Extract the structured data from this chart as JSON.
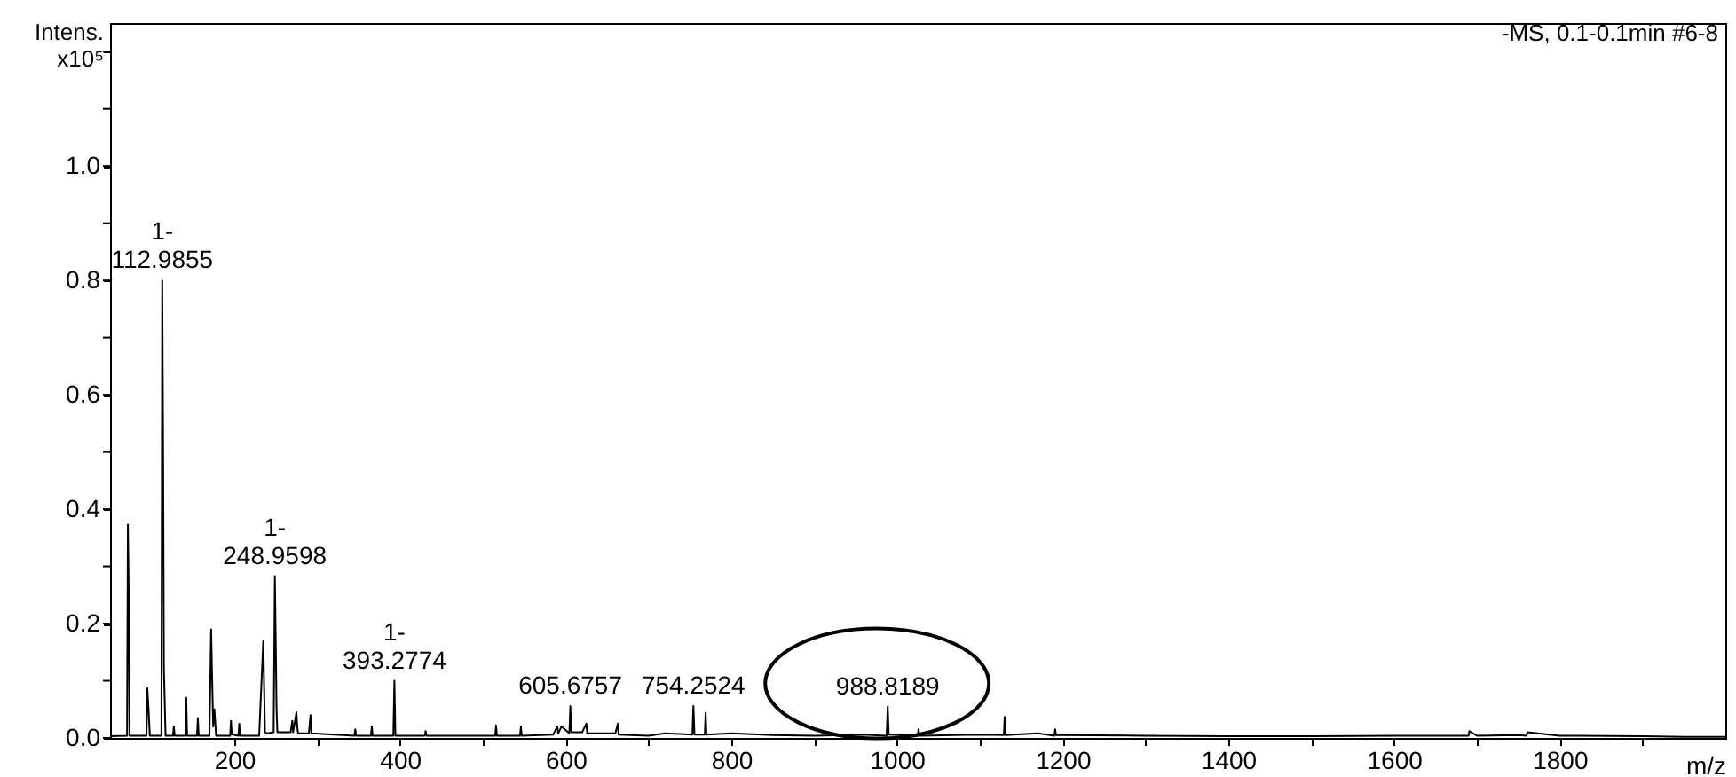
{
  "chart_data": {
    "type": "line",
    "ylabel": "Intens.\nx10⁵",
    "xlabel": "m/z",
    "xlim": [
      50,
      2000
    ],
    "ylim": [
      0,
      1.25
    ],
    "xticks": [
      200,
      {
        "value": 300,
        "label": null
      },
      400,
      {
        "value": 500,
        "label": null
      },
      600,
      {
        "value": 700,
        "label": null
      },
      800,
      {
        "value": 900,
        "label": null
      },
      1000,
      {
        "value": 1100,
        "label": null
      },
      1200,
      {
        "value": 1300,
        "label": null
      },
      1400,
      {
        "value": 1500,
        "label": null
      },
      1600,
      {
        "value": 1700,
        "label": null
      },
      1800,
      {
        "value": 1900,
        "label": null
      }
    ],
    "yticks": [
      {
        "value": 0,
        "label": "0.0"
      },
      {
        "value": 0.1,
        "label": null
      },
      {
        "value": 0.2,
        "label": "0.2"
      },
      {
        "value": 0.3,
        "label": null
      },
      {
        "value": 0.4,
        "label": "0.4"
      },
      {
        "value": 0.5,
        "label": null
      },
      {
        "value": 0.6,
        "label": "0.6"
      },
      {
        "value": 0.7,
        "label": null
      },
      {
        "value": 0.8,
        "label": "0.8"
      },
      {
        "value": 0.9,
        "label": null
      },
      {
        "value": 1.0,
        "label": "1.0"
      },
      {
        "value": 1.1,
        "label": null
      },
      {
        "value": 1.2,
        "label": null
      }
    ],
    "grid": false,
    "marker": "none",
    "line_style": "solid",
    "series": [
      {
        "color": "#000000",
        "x": [
          50,
          70.5,
          71.5,
          72.5,
          73.5,
          94,
          95,
          96.5,
          98,
          112,
          112.9855,
          114,
          115,
          117,
          126,
          127,
          128,
          141,
          142,
          143,
          155,
          156,
          157,
          170,
          172,
          173,
          174.5,
          176,
          178,
          195,
          196,
          197,
          205,
          206,
          207,
          230,
          235,
          236,
          237,
          240,
          247.5,
          248.9598,
          250,
          251,
          252,
          268,
          270,
          271,
          275,
          276,
          277,
          290,
          292,
          293,
          345,
          346,
          347,
          365,
          366,
          367,
          392,
          393.2774,
          394.5,
          430,
          431,
          432,
          515,
          516,
          517,
          545,
          546,
          547,
          585,
          590,
          591,
          595,
          604.5,
          605.6757,
          607,
          620,
          625,
          626,
          660,
          663,
          664,
          700,
          720,
          753,
          754.2524,
          755.5,
          768,
          769,
          770,
          800,
          850,
          900,
          960,
          987.5,
          988.8189,
          990,
          1025,
          1026,
          1027,
          1100,
          1129,
          1130,
          1131,
          1170,
          1190,
          1191,
          1192,
          1300,
          1400,
          1500,
          1600,
          1680,
          1690,
          1691,
          1700,
          1750,
          1760,
          1761,
          1800,
          1900,
          1950,
          2000
        ],
        "values": [
          0.003,
          0.004,
          0.373,
          0.26,
          0.004,
          0.004,
          0.087,
          0.05,
          0.004,
          0.004,
          0.8,
          0.52,
          0.12,
          0.004,
          0.004,
          0.02,
          0.004,
          0.004,
          0.07,
          0.004,
          0.004,
          0.035,
          0.004,
          0.004,
          0.19,
          0.12,
          0.02,
          0.05,
          0.004,
          0.004,
          0.03,
          0.006,
          0.004,
          0.025,
          0.004,
          0.004,
          0.17,
          0.09,
          0.01,
          0.008,
          0.01,
          0.283,
          0.17,
          0.05,
          0.01,
          0.01,
          0.03,
          0.01,
          0.045,
          0.02,
          0.008,
          0.008,
          0.04,
          0.008,
          0.004,
          0.015,
          0.004,
          0.004,
          0.02,
          0.004,
          0.004,
          0.1,
          0.004,
          0.004,
          0.012,
          0.004,
          0.004,
          0.022,
          0.004,
          0.004,
          0.02,
          0.004,
          0.006,
          0.02,
          0.008,
          0.02,
          0.008,
          0.056,
          0.01,
          0.01,
          0.025,
          0.008,
          0.008,
          0.025,
          0.006,
          0.004,
          0.008,
          0.006,
          0.056,
          0.006,
          0.006,
          0.044,
          0.006,
          0.008,
          0.005,
          0.004,
          0.006,
          0.004,
          0.055,
          0.006,
          0.004,
          0.015,
          0.004,
          0.006,
          0.005,
          0.037,
          0.005,
          0.008,
          0.004,
          0.015,
          0.005,
          0.004,
          0.003,
          0.003,
          0.004,
          0.004,
          0.004,
          0.012,
          0.004,
          0.005,
          0.004,
          0.01,
          0.004,
          0.003,
          0.002,
          0.002
        ]
      }
    ],
    "annotations": [
      "-MS, 0.1-0.1min #6-8",
      {
        "text": "1-\n112.9855",
        "x": 112.9855,
        "y": 0.8
      },
      {
        "text": "1-\n248.9598",
        "x": 248.9598,
        "y": 0.283
      },
      {
        "text": "1-\n393.2774",
        "x": 393.2774,
        "y": 0.1
      },
      {
        "text": "605.6757",
        "x": 605.6757,
        "y": 0.056
      },
      {
        "text": "754.2524",
        "x": 754.2524,
        "y": 0.056
      },
      {
        "text": "988.8189",
        "x": 988.8189,
        "y": 0.055
      }
    ]
  }
}
